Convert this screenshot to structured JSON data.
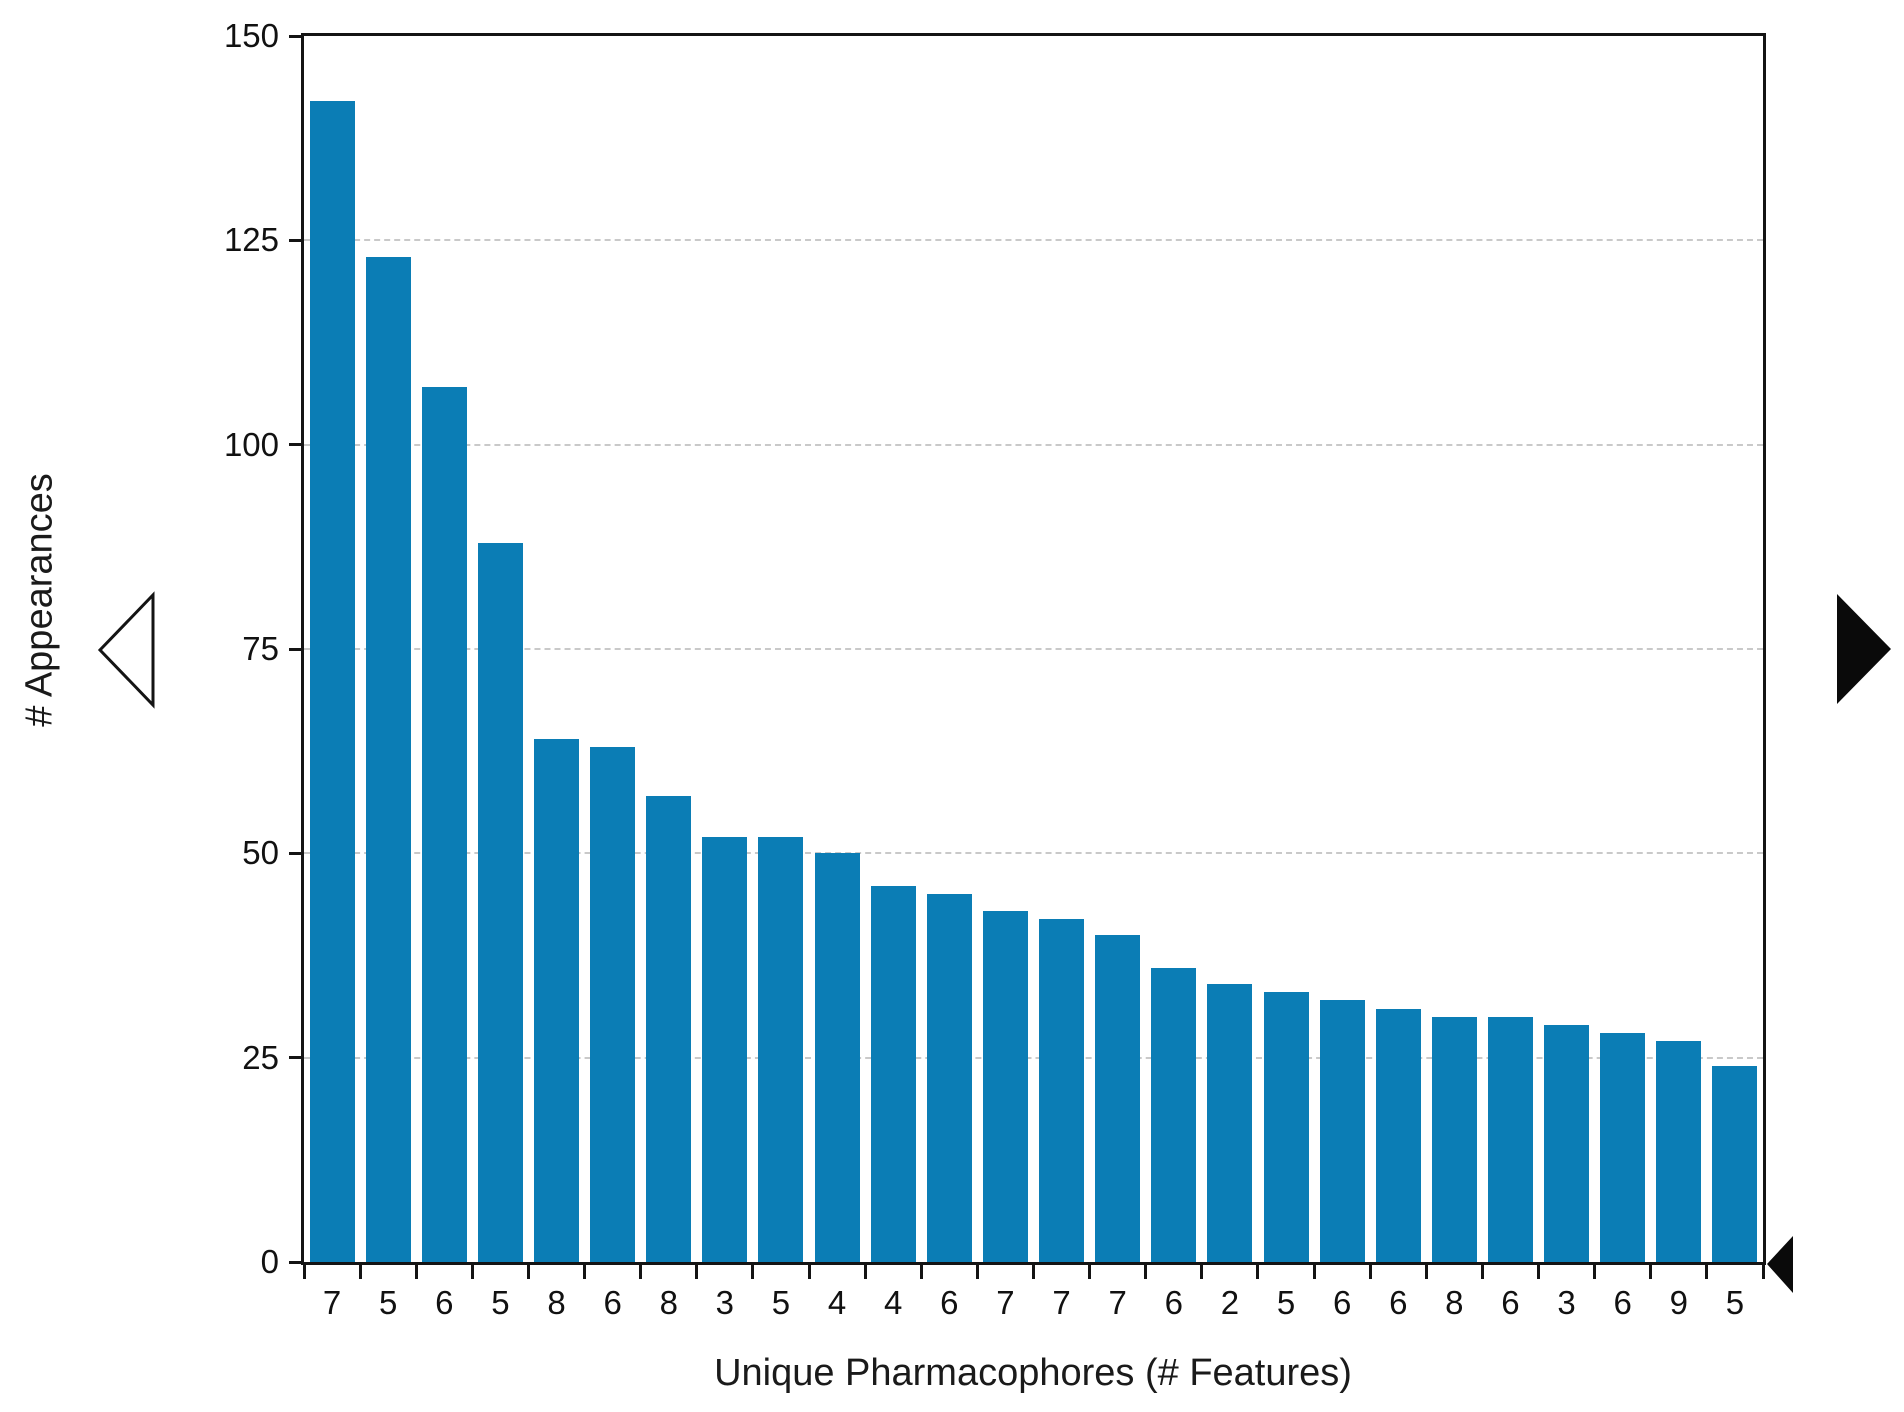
{
  "chart_data": {
    "type": "bar",
    "title": "",
    "xlabel": "Unique Pharmacophores (# Features)",
    "ylabel": "# Appearances",
    "categories": [
      "7",
      "5",
      "6",
      "5",
      "8",
      "6",
      "8",
      "3",
      "5",
      "4",
      "4",
      "6",
      "7",
      "7",
      "7",
      "6",
      "2",
      "5",
      "6",
      "6",
      "8",
      "6",
      "3",
      "6",
      "9",
      "5"
    ],
    "values": [
      142,
      123,
      107,
      88,
      64,
      63,
      57,
      52,
      52,
      50,
      46,
      45,
      43,
      42,
      40,
      36,
      34,
      33,
      32,
      31,
      30,
      30,
      29,
      28,
      27,
      24
    ],
    "ylim": [
      0,
      150
    ],
    "yticks": [
      0,
      25,
      50,
      75,
      100,
      125,
      150
    ],
    "grid": "horizontal dashed gridlines at 25,50,75,100,125",
    "legend": "none",
    "bar_color": "#0b7db5"
  },
  "controls": {
    "prev_arrow_icon": "hollow-left-triangle",
    "next_arrow_icon": "solid-right-triangle",
    "axis_end_marker_icon": "solid-left-triangle"
  },
  "colors": {
    "background": "#ffffff",
    "bar": "#0b7db5",
    "axis": "#141414",
    "grid": "#c9c9c9",
    "text": "#111111"
  }
}
